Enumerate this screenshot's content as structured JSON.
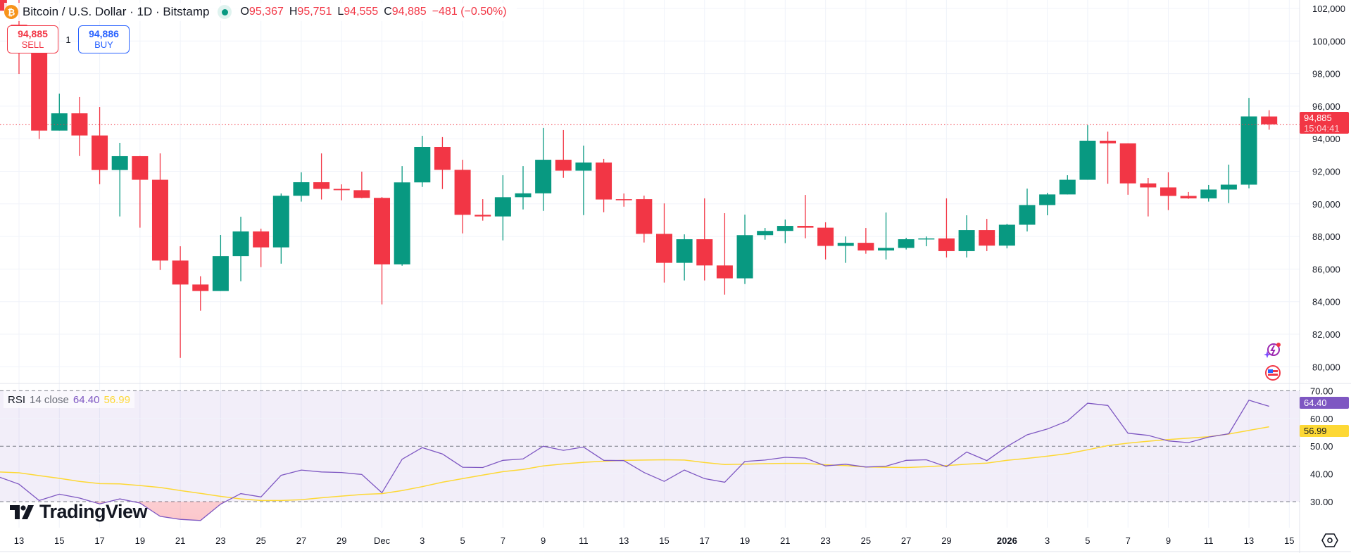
{
  "header": {
    "symbol_icon": "bitcoin-icon",
    "title": "Bitcoin / U.S. Dollar · 1D · Bitstamp",
    "market_status_icon": "market-open-dot-icon",
    "ohlc": {
      "o_label": "O",
      "o": "95,367",
      "h_label": "H",
      "h": "95,751",
      "l_label": "L",
      "l": "94,555",
      "c_label": "C",
      "c": "94,885",
      "change": "−481 (−0.50%)"
    }
  },
  "trade": {
    "sell_price": "94,885",
    "sell_label": "SELL",
    "quantity": "1",
    "buy_price": "94,886",
    "buy_label": "BUY"
  },
  "price_tag": {
    "price": "94,885",
    "countdown": "15:04:41"
  },
  "rsi_legend": {
    "name": "RSI",
    "params": "14 close",
    "rsi_value": "64.40",
    "ma_value": "56.99"
  },
  "rsi_tags": {
    "rsi": "64.40",
    "ma": "56.99"
  },
  "logo": {
    "text": "TradingView"
  },
  "side_icons": [
    "ai-lightning-sparkle-icon",
    "us-flag-icon"
  ],
  "colors": {
    "up": "#089981",
    "down": "#f23645",
    "rsi": "#7e57c2",
    "rsi_ma": "#fdd835",
    "band": "#7e57c2",
    "grid": "#f0f3fa",
    "last_price": "#f23645"
  },
  "chart_data": {
    "type": "candlestick",
    "interval": "1D",
    "price_axis": {
      "range": [
        79500,
        102600
      ],
      "ticks": [
        102000,
        100000,
        98000,
        96000,
        94000,
        92000,
        90000,
        88000,
        86000,
        84000,
        82000,
        80000
      ],
      "tick_labels": [
        "102,000",
        "100,000",
        "98,000",
        "96,000",
        "94,000",
        "92,000",
        "90,000",
        "88,000",
        "86,000",
        "84,000",
        "82,000",
        "80,000"
      ]
    },
    "last_price": 94885,
    "grid": true,
    "candles": [
      {
        "date": "2025-11-12",
        "o": 103200,
        "h": 104200,
        "l": 100800,
        "c": 101860
      },
      {
        "date": "2025-11-13",
        "o": 101000,
        "h": 102600,
        "l": 97980,
        "c": 99700
      },
      {
        "date": "2025-11-14",
        "o": 99700,
        "h": 100100,
        "l": 93980,
        "c": 94500
      },
      {
        "date": "2025-11-15",
        "o": 94500,
        "h": 96770,
        "l": 94500,
        "c": 95560
      },
      {
        "date": "2025-11-16",
        "o": 95560,
        "h": 96560,
        "l": 92940,
        "c": 94200
      },
      {
        "date": "2025-11-17",
        "o": 94200,
        "h": 95950,
        "l": 91210,
        "c": 92080
      },
      {
        "date": "2025-11-18",
        "o": 92080,
        "h": 93750,
        "l": 89230,
        "c": 92930
      },
      {
        "date": "2025-11-19",
        "o": 92930,
        "h": 92940,
        "l": 88540,
        "c": 91480
      },
      {
        "date": "2025-11-20",
        "o": 91480,
        "h": 93100,
        "l": 85940,
        "c": 86520
      },
      {
        "date": "2025-11-21",
        "o": 86520,
        "h": 87400,
        "l": 80540,
        "c": 85050
      },
      {
        "date": "2025-11-22",
        "o": 85050,
        "h": 85560,
        "l": 83440,
        "c": 84650
      },
      {
        "date": "2025-11-23",
        "o": 84650,
        "h": 88090,
        "l": 84650,
        "c": 86790
      },
      {
        "date": "2025-11-24",
        "o": 86790,
        "h": 89210,
        "l": 85250,
        "c": 88310
      },
      {
        "date": "2025-11-25",
        "o": 88310,
        "h": 88480,
        "l": 86120,
        "c": 87330
      },
      {
        "date": "2025-11-26",
        "o": 87330,
        "h": 90640,
        "l": 86330,
        "c": 90500
      },
      {
        "date": "2025-11-27",
        "o": 90500,
        "h": 91940,
        "l": 90140,
        "c": 91330
      },
      {
        "date": "2025-11-28",
        "o": 91330,
        "h": 93100,
        "l": 90270,
        "c": 90920
      },
      {
        "date": "2025-11-29",
        "o": 90920,
        "h": 91200,
        "l": 90220,
        "c": 90840
      },
      {
        "date": "2025-11-30",
        "o": 90840,
        "h": 91980,
        "l": 90350,
        "c": 90370
      },
      {
        "date": "2025-12-01",
        "o": 90370,
        "h": 90420,
        "l": 83830,
        "c": 86290
      },
      {
        "date": "2025-12-02",
        "o": 86290,
        "h": 92320,
        "l": 86200,
        "c": 91320
      },
      {
        "date": "2025-12-03",
        "o": 91320,
        "h": 94180,
        "l": 91040,
        "c": 93490
      },
      {
        "date": "2025-12-04",
        "o": 93490,
        "h": 94100,
        "l": 90910,
        "c": 92090
      },
      {
        "date": "2025-12-05",
        "o": 92090,
        "h": 92710,
        "l": 88190,
        "c": 89330
      },
      {
        "date": "2025-12-06",
        "o": 89330,
        "h": 90290,
        "l": 88970,
        "c": 89230
      },
      {
        "date": "2025-12-07",
        "o": 89230,
        "h": 91760,
        "l": 87760,
        "c": 90410
      },
      {
        "date": "2025-12-08",
        "o": 90410,
        "h": 92320,
        "l": 89660,
        "c": 90650
      },
      {
        "date": "2025-12-09",
        "o": 90650,
        "h": 94660,
        "l": 89570,
        "c": 92710
      },
      {
        "date": "2025-12-10",
        "o": 92710,
        "h": 94530,
        "l": 91600,
        "c": 92040
      },
      {
        "date": "2025-12-11",
        "o": 92040,
        "h": 93580,
        "l": 89310,
        "c": 92540
      },
      {
        "date": "2025-12-12",
        "o": 92540,
        "h": 92760,
        "l": 89490,
        "c": 90270
      },
      {
        "date": "2025-12-13",
        "o": 90290,
        "h": 90640,
        "l": 89830,
        "c": 90260
      },
      {
        "date": "2025-12-14",
        "o": 90290,
        "h": 90510,
        "l": 87630,
        "c": 88160
      },
      {
        "date": "2025-12-15",
        "o": 88160,
        "h": 90030,
        "l": 85170,
        "c": 86380
      },
      {
        "date": "2025-12-16",
        "o": 86380,
        "h": 88130,
        "l": 85300,
        "c": 87830
      },
      {
        "date": "2025-12-17",
        "o": 87830,
        "h": 90340,
        "l": 85300,
        "c": 86220
      },
      {
        "date": "2025-12-18",
        "o": 86220,
        "h": 89430,
        "l": 84430,
        "c": 85430
      },
      {
        "date": "2025-12-19",
        "o": 85430,
        "h": 89340,
        "l": 85080,
        "c": 88080
      },
      {
        "date": "2025-12-20",
        "o": 88080,
        "h": 88520,
        "l": 87800,
        "c": 88340
      },
      {
        "date": "2025-12-21",
        "o": 88340,
        "h": 89040,
        "l": 87590,
        "c": 88650
      },
      {
        "date": "2025-12-22",
        "o": 88650,
        "h": 90550,
        "l": 87890,
        "c": 88540
      },
      {
        "date": "2025-12-23",
        "o": 88540,
        "h": 88870,
        "l": 86590,
        "c": 87420
      },
      {
        "date": "2025-12-24",
        "o": 87420,
        "h": 88000,
        "l": 86380,
        "c": 87610
      },
      {
        "date": "2025-12-25",
        "o": 87610,
        "h": 88520,
        "l": 86940,
        "c": 87140
      },
      {
        "date": "2025-12-26",
        "o": 87140,
        "h": 89470,
        "l": 86590,
        "c": 87300
      },
      {
        "date": "2025-12-27",
        "o": 87300,
        "h": 87920,
        "l": 87200,
        "c": 87830
      },
      {
        "date": "2025-12-28",
        "o": 87830,
        "h": 88000,
        "l": 87400,
        "c": 87880
      },
      {
        "date": "2025-12-29",
        "o": 87880,
        "h": 90340,
        "l": 86710,
        "c": 87100
      },
      {
        "date": "2025-12-30",
        "o": 87100,
        "h": 89300,
        "l": 86710,
        "c": 88390
      },
      {
        "date": "2025-12-31",
        "o": 88390,
        "h": 89080,
        "l": 87100,
        "c": 87440
      },
      {
        "date": "2026-01-01",
        "o": 87440,
        "h": 88780,
        "l": 87270,
        "c": 88720
      },
      {
        "date": "2026-01-02",
        "o": 88720,
        "h": 90940,
        "l": 88310,
        "c": 89930
      },
      {
        "date": "2026-01-03",
        "o": 89930,
        "h": 90680,
        "l": 89300,
        "c": 90580
      },
      {
        "date": "2026-01-04",
        "o": 90580,
        "h": 91760,
        "l": 90580,
        "c": 91480
      },
      {
        "date": "2026-01-05",
        "o": 91480,
        "h": 94830,
        "l": 91480,
        "c": 93880
      },
      {
        "date": "2026-01-06",
        "o": 93880,
        "h": 94440,
        "l": 91240,
        "c": 93720
      },
      {
        "date": "2026-01-07",
        "o": 93720,
        "h": 93720,
        "l": 90560,
        "c": 91260
      },
      {
        "date": "2026-01-08",
        "o": 91260,
        "h": 91590,
        "l": 89230,
        "c": 91010
      },
      {
        "date": "2026-01-09",
        "o": 91010,
        "h": 91940,
        "l": 89620,
        "c": 90490
      },
      {
        "date": "2026-01-10",
        "o": 90490,
        "h": 90730,
        "l": 90310,
        "c": 90340
      },
      {
        "date": "2026-01-11",
        "o": 90340,
        "h": 91160,
        "l": 90140,
        "c": 90880
      },
      {
        "date": "2026-01-12",
        "o": 90880,
        "h": 92410,
        "l": 90050,
        "c": 91180
      },
      {
        "date": "2026-01-13",
        "o": 91180,
        "h": 96510,
        "l": 90960,
        "c": 95370
      },
      {
        "date": "2026-01-14",
        "o": 95367,
        "h": 95751,
        "l": 94555,
        "c": 94885
      }
    ],
    "rsi": {
      "title": "RSI 14 close",
      "axis": {
        "ticks": [
          70,
          60,
          50,
          40,
          30
        ],
        "tick_labels": [
          "70.00",
          "60.00",
          "50.00",
          "40.00",
          "30.00"
        ]
      },
      "band": [
        30,
        70
      ],
      "series": [
        {
          "name": "RSI",
          "values": [
            38.9,
            36.3,
            30.4,
            32.7,
            31.3,
            29.2,
            31.0,
            29.5,
            24.7,
            23.6,
            23.2,
            29.1,
            32.9,
            31.7,
            39.5,
            41.4,
            40.7,
            40.5,
            39.8,
            33.2,
            45.3,
            49.5,
            47.2,
            42.4,
            42.3,
            44.9,
            45.4,
            50.0,
            48.5,
            49.7,
            44.9,
            44.8,
            40.5,
            37.3,
            41.4,
            38.3,
            37.0,
            44.5,
            45.0,
            46.0,
            45.7,
            42.9,
            43.5,
            42.5,
            42.8,
            44.9,
            45.1,
            42.6,
            47.9,
            44.8,
            49.9,
            54.1,
            56.2,
            59.1,
            65.5,
            64.7,
            54.7,
            53.9,
            51.9,
            51.3,
            53.3,
            54.5,
            66.6,
            64.4
          ]
        },
        {
          "name": "RSI-based MA",
          "values": [
            40.7,
            40.4,
            39.4,
            38.4,
            37.3,
            36.5,
            36.4,
            35.8,
            35.1,
            34.0,
            33.0,
            31.9,
            31.0,
            30.4,
            30.4,
            30.7,
            31.4,
            32.0,
            32.6,
            32.9,
            34.0,
            35.4,
            37.0,
            38.3,
            39.6,
            40.8,
            41.6,
            42.9,
            43.6,
            44.2,
            44.6,
            44.9,
            45.0,
            45.1,
            45.0,
            44.1,
            43.4,
            43.5,
            43.7,
            43.8,
            43.8,
            43.3,
            43.0,
            42.5,
            42.4,
            42.3,
            42.6,
            43.0,
            43.5,
            43.9,
            44.9,
            45.6,
            46.4,
            47.3,
            48.7,
            50.2,
            51.1,
            51.8,
            52.4,
            52.9,
            53.4,
            54.4,
            55.7,
            57.0
          ]
        }
      ]
    },
    "x_axis": {
      "labels": [
        {
          "date": "2025-11-13",
          "label": "13"
        },
        {
          "date": "2025-11-15",
          "label": "15"
        },
        {
          "date": "2025-11-17",
          "label": "17"
        },
        {
          "date": "2025-11-19",
          "label": "19"
        },
        {
          "date": "2025-11-21",
          "label": "21"
        },
        {
          "date": "2025-11-23",
          "label": "23"
        },
        {
          "date": "2025-11-25",
          "label": "25"
        },
        {
          "date": "2025-11-27",
          "label": "27"
        },
        {
          "date": "2025-11-29",
          "label": "29"
        },
        {
          "date": "2025-12-01",
          "label": "Dec"
        },
        {
          "date": "2025-12-03",
          "label": "3"
        },
        {
          "date": "2025-12-05",
          "label": "5"
        },
        {
          "date": "2025-12-07",
          "label": "7"
        },
        {
          "date": "2025-12-09",
          "label": "9"
        },
        {
          "date": "2025-12-11",
          "label": "11"
        },
        {
          "date": "2025-12-13",
          "label": "13"
        },
        {
          "date": "2025-12-15",
          "label": "15"
        },
        {
          "date": "2025-12-17",
          "label": "17"
        },
        {
          "date": "2025-12-19",
          "label": "19"
        },
        {
          "date": "2025-12-21",
          "label": "21"
        },
        {
          "date": "2025-12-23",
          "label": "23"
        },
        {
          "date": "2025-12-25",
          "label": "25"
        },
        {
          "date": "2025-12-27",
          "label": "27"
        },
        {
          "date": "2025-12-29",
          "label": "29"
        },
        {
          "date": "2026-01-01",
          "label": "2026",
          "bold": true
        },
        {
          "date": "2026-01-03",
          "label": "3"
        },
        {
          "date": "2026-01-05",
          "label": "5"
        },
        {
          "date": "2026-01-07",
          "label": "7"
        },
        {
          "date": "2026-01-09",
          "label": "9"
        },
        {
          "date": "2026-01-11",
          "label": "11"
        },
        {
          "date": "2026-01-13",
          "label": "13"
        },
        {
          "date": "2026-01-15",
          "label": "15"
        }
      ]
    }
  }
}
